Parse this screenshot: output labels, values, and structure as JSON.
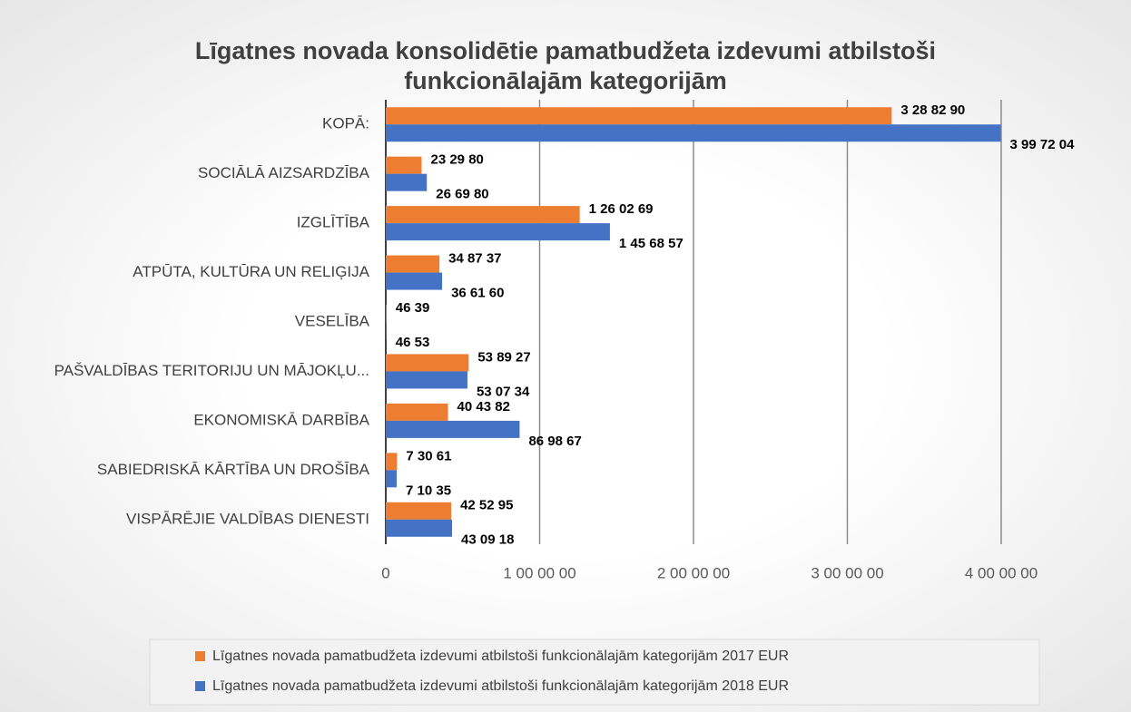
{
  "chart_data": {
    "type": "bar",
    "orientation": "horizontal",
    "title": "Līgatnes novada konsolidētie pamatbudžeta izdevumi atbilstoši funkcionālajām  kategorijām",
    "categories": [
      "KOPĀ:",
      "SOCIĀLĀ AIZSARDZĪBA",
      "IZGLĪTĪBA",
      "ATPŪTA, KULTŪRA UN RELIĢIJA",
      "VESELĪBA",
      "PAŠVALDĪBAS TERITORIJU UN MĀJOKĻU...",
      "EKONOMISKĀ DARBĪBA",
      "SABIEDRISKĀ KĀRTĪBA UN DROŠĪBA",
      "VISPĀRĒJIE VALDĪBAS DIENESTI"
    ],
    "series": [
      {
        "name": "Līgatnes novada  pamatbudžeta izdevumi atbilstoši funkcionālajām kategorijām 2017 EUR",
        "color": "#ed7d31",
        "values": [
          3288290,
          232980,
          1260269,
          348737,
          4639,
          538927,
          404382,
          73061,
          425295
        ],
        "value_labels": [
          "3 28 82 90",
          "23 29 80",
          "1 26 02 69",
          "34 87 37",
          "46 39",
          "53 89 27",
          "40 43 82",
          "7 30 61",
          "42 52 95"
        ]
      },
      {
        "name": "Līgatnes novada  pamatbudžeta izdevumi atbilstoši funkcionālajām kategorijām 2018 EUR",
        "color": "#4472c4",
        "values": [
          3997204,
          266980,
          1456857,
          366160,
          4653,
          530734,
          869867,
          71035,
          430918
        ],
        "value_labels": [
          "3 99 72 04",
          "26 69 80",
          "1 45 68 57",
          "36 61 60",
          "46 53",
          "53 07 34",
          "86 98 67",
          "7 10 35",
          "43 09 18"
        ]
      }
    ],
    "xlim": [
      0,
      4000000
    ],
    "xticks": [
      0,
      {
        "value": 1000000,
        "label": "1 00 00 00"
      },
      {
        "value": 2000000,
        "label": "2 00 00 00"
      },
      {
        "value": 3000000,
        "label": "3 00 00 00"
      },
      {
        "value": 4000000,
        "label": "4 00 00 00"
      }
    ],
    "grid": true,
    "legend": "bottom"
  }
}
